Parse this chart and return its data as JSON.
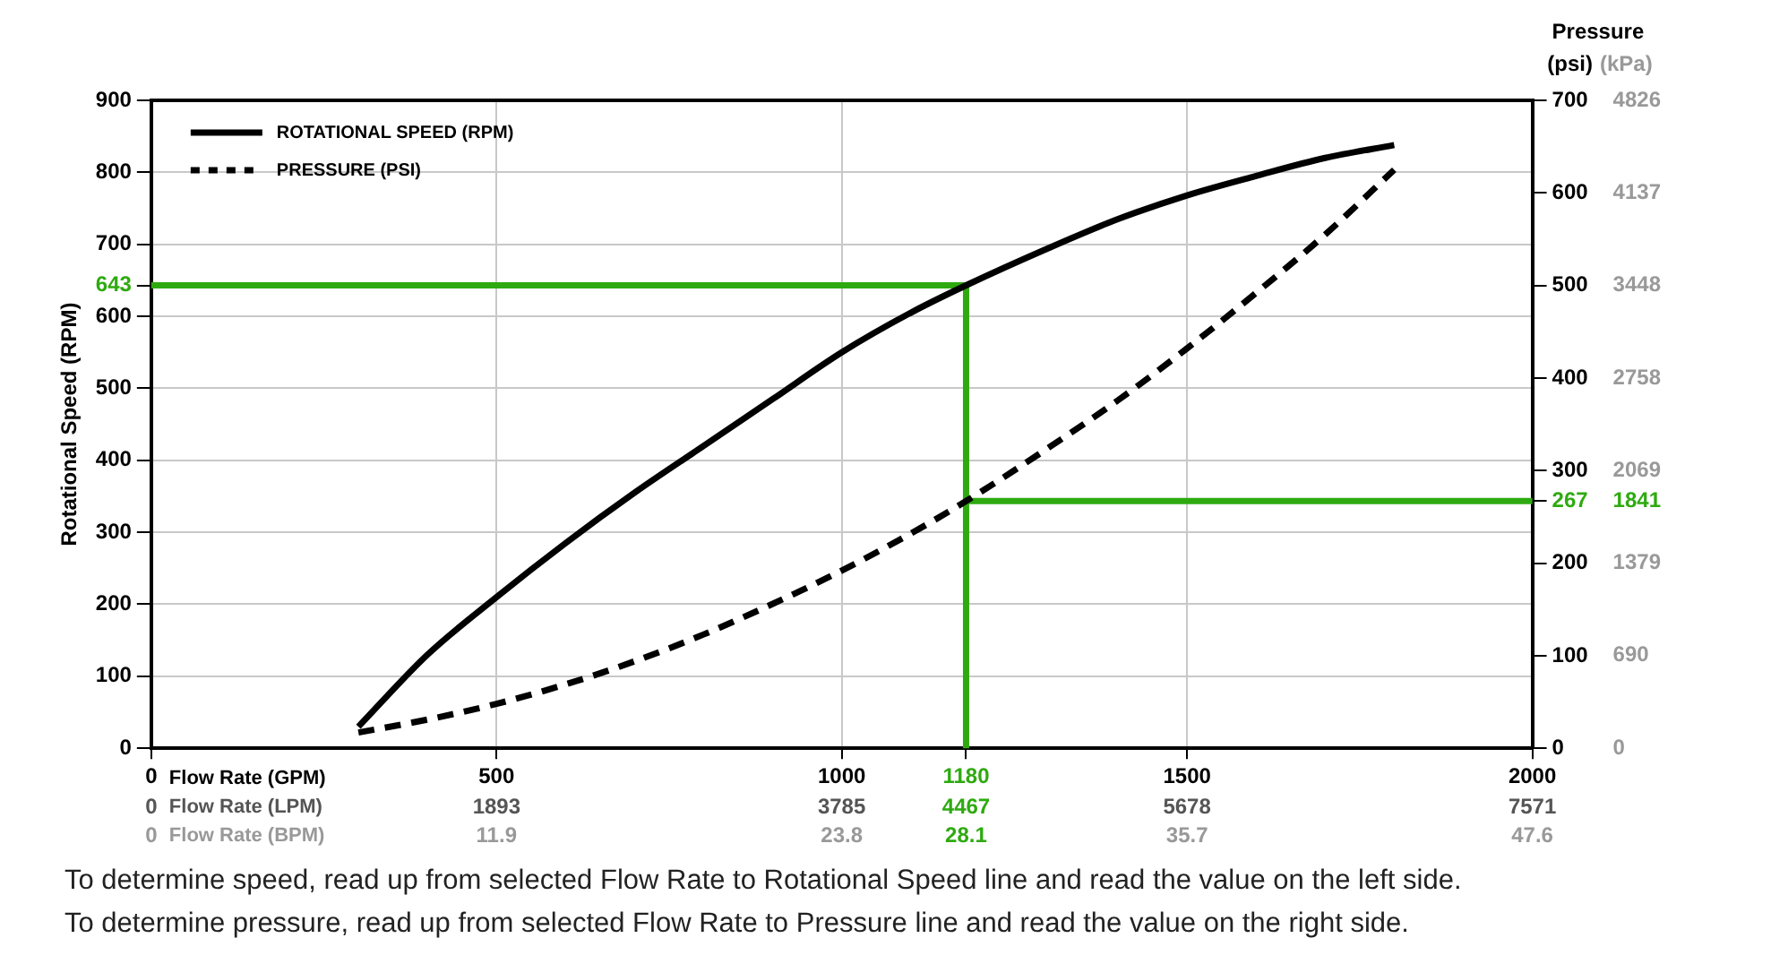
{
  "chart_data": {
    "type": "line",
    "xlabel": "Flow Rate (GPM)",
    "x2label": "Flow Rate (LPM)",
    "ylabel": "Rotational Speed (RPM)",
    "y2label": "(psi)",
    "y3label": "(kPa)",
    "x": [
      300,
      400,
      500,
      600,
      700,
      800,
      900,
      1000,
      1100,
      1180,
      1300,
      1400,
      1500,
      1600,
      1700,
      1800
    ],
    "series": [
      {
        "name": "ROTATIONAL SPEED (RPM)",
        "color": "#000000",
        "line_style": "solid",
        "values": [
          30,
          130,
          210,
          285,
          355,
          420,
          485,
          550,
          605,
          643,
          695,
          735,
          768,
          795,
          820,
          838
        ]
      },
      {
        "name": "PRESSURE (PSI)",
        "color": "#000000",
        "line_style": "dashed",
        "axis": "y2",
        "values": [
          17,
          31,
          48,
          69,
          94,
          123,
          156,
          192,
          232,
          267,
          325,
          376,
          432,
          492,
          555,
          625
        ]
      }
    ],
    "xlim": [
      0,
      2000
    ],
    "xticks": [
      0,
      500,
      1000,
      1180,
      1500,
      2000
    ],
    "x2lim": [
      0,
      7571
    ],
    "x2ticks": [
      0,
      1893,
      3785,
      4467,
      5678,
      7571
    ],
    "ylim": [
      0,
      900
    ],
    "yticks": [
      0,
      100,
      200,
      300,
      400,
      500,
      600,
      643,
      700,
      800,
      900
    ],
    "y2lim": [
      0,
      700
    ],
    "y2ticks": [
      0,
      100,
      200,
      267,
      300,
      400,
      500,
      600,
      700
    ],
    "y3lim": [
      0,
      4826
    ],
    "y3ticks": [
      0,
      690,
      1379,
      1841,
      2069,
      2758,
      3448,
      4137,
      4826
    ],
    "ref_lines": [
      {
        "axis": "x",
        "value": 1180,
        "color": "#2eaa10"
      },
      {
        "axis": "y",
        "value": 643,
        "color": "#2eaa10"
      },
      {
        "axis": "y2",
        "value": 267,
        "color": "#2eaa10"
      }
    ],
    "grid": true,
    "legend": "top left",
    "marker": "none",
    "annotations": [
      "Pressure",
      "Flow Rate (BPM)",
      "0",
      "11.9",
      "23.8",
      "28.1",
      "35.7",
      "47.6",
      "To determine speed, read up from selected Flow Rate to Rotational Speed line and read the value on the left side.",
      "To determine pressure, read up from selected Flow Rate to Pressure line and read the value on the right side."
    ]
  }
}
